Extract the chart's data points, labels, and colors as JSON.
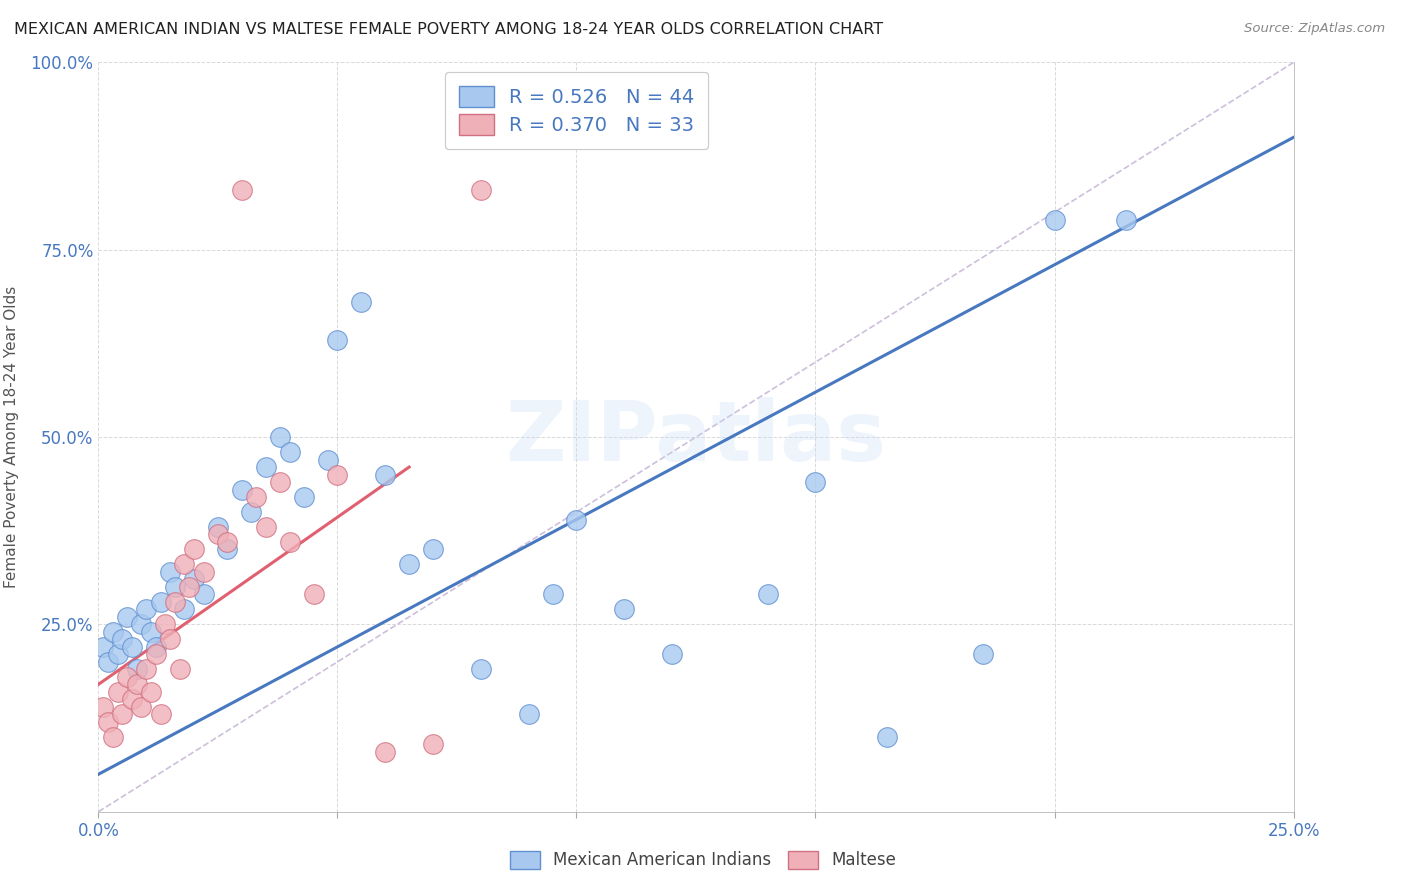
{
  "title": "MEXICAN AMERICAN INDIAN VS MALTESE FEMALE POVERTY AMONG 18-24 YEAR OLDS CORRELATION CHART",
  "source": "Source: ZipAtlas.com",
  "ylabel": "Female Poverty Among 18-24 Year Olds",
  "xlim": [
    0.0,
    0.25
  ],
  "ylim": [
    0.0,
    1.0
  ],
  "xticks": [
    0.0,
    0.05,
    0.1,
    0.15,
    0.2,
    0.25
  ],
  "yticks": [
    0.0,
    0.25,
    0.5,
    0.75,
    1.0
  ],
  "blue_R": 0.526,
  "blue_N": 44,
  "pink_R": 0.37,
  "pink_N": 33,
  "blue_color": "#a8c8f0",
  "pink_color": "#f0b0b8",
  "blue_edge_color": "#6090d0",
  "pink_edge_color": "#d07080",
  "blue_line_color": "#4878c0",
  "pink_line_color": "#e06070",
  "ref_line_color": "#c8b8d8",
  "watermark": "ZIPatlas",
  "legend_blue_label": "Mexican American Indians",
  "legend_pink_label": "Maltese",
  "blue_x": [
    0.001,
    0.002,
    0.003,
    0.004,
    0.005,
    0.006,
    0.007,
    0.008,
    0.009,
    0.01,
    0.011,
    0.012,
    0.013,
    0.015,
    0.016,
    0.018,
    0.02,
    0.022,
    0.025,
    0.027,
    0.03,
    0.032,
    0.035,
    0.038,
    0.04,
    0.043,
    0.048,
    0.05,
    0.055,
    0.06,
    0.065,
    0.07,
    0.08,
    0.09,
    0.095,
    0.1,
    0.11,
    0.12,
    0.14,
    0.15,
    0.165,
    0.185,
    0.2,
    0.215
  ],
  "blue_y": [
    0.22,
    0.2,
    0.24,
    0.21,
    0.23,
    0.26,
    0.22,
    0.19,
    0.25,
    0.27,
    0.24,
    0.22,
    0.28,
    0.32,
    0.3,
    0.27,
    0.31,
    0.29,
    0.38,
    0.35,
    0.43,
    0.4,
    0.46,
    0.5,
    0.48,
    0.42,
    0.47,
    0.63,
    0.68,
    0.45,
    0.33,
    0.35,
    0.19,
    0.13,
    0.29,
    0.39,
    0.27,
    0.21,
    0.29,
    0.44,
    0.1,
    0.21,
    0.79,
    0.79
  ],
  "pink_x": [
    0.001,
    0.002,
    0.003,
    0.004,
    0.005,
    0.006,
    0.007,
    0.008,
    0.009,
    0.01,
    0.011,
    0.012,
    0.013,
    0.014,
    0.015,
    0.016,
    0.017,
    0.018,
    0.019,
    0.02,
    0.022,
    0.025,
    0.027,
    0.03,
    0.033,
    0.035,
    0.038,
    0.04,
    0.045,
    0.05,
    0.06,
    0.07,
    0.08
  ],
  "pink_y": [
    0.14,
    0.12,
    0.1,
    0.16,
    0.13,
    0.18,
    0.15,
    0.17,
    0.14,
    0.19,
    0.16,
    0.21,
    0.13,
    0.25,
    0.23,
    0.28,
    0.19,
    0.33,
    0.3,
    0.35,
    0.32,
    0.37,
    0.36,
    0.83,
    0.42,
    0.38,
    0.44,
    0.36,
    0.29,
    0.45,
    0.08,
    0.09,
    0.83
  ],
  "blue_trend_x0": 0.0,
  "blue_trend_y0": 0.05,
  "blue_trend_x1": 0.25,
  "blue_trend_y1": 0.9,
  "pink_trend_x0": 0.0,
  "pink_trend_y0": 0.17,
  "pink_trend_x1": 0.065,
  "pink_trend_y1": 0.46
}
